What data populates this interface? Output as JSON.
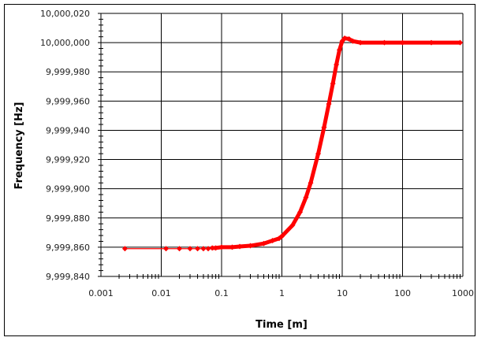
{
  "chart_data": {
    "type": "line",
    "title": "",
    "xlabel": "Time [m]",
    "ylabel": "Frequency [Hz]",
    "xscale": "log",
    "xlim": [
      0.001,
      1000
    ],
    "ylim": [
      9999840,
      10000020
    ],
    "grid": true,
    "legend": null,
    "x_ticks": [
      "0.001",
      "0.01",
      "0.1",
      "1",
      "10",
      "100",
      "1000"
    ],
    "y_ticks": [
      "9,999,840",
      "9,999,860",
      "9,999,880",
      "9,999,900",
      "9,999,920",
      "9,999,940",
      "9,999,960",
      "9,999,980",
      "10,000,000",
      "10,000,020"
    ],
    "series": [
      {
        "name": "Frequency",
        "color": "#ff0000",
        "marker": "diamond",
        "x": [
          0.0025,
          0.012,
          0.02,
          0.03,
          0.04,
          0.05,
          0.06,
          0.07,
          0.08,
          0.1,
          0.15,
          0.2,
          0.3,
          0.5,
          0.7,
          0.9,
          1.0,
          1.5,
          2.0,
          2.5,
          3.0,
          4.0,
          5.0,
          6.0,
          7.0,
          8.0,
          9.0,
          10.0,
          11.0,
          13.0,
          15.0,
          20.0,
          50.0,
          100.0,
          300.0,
          900.0
        ],
        "values": [
          9999859,
          9999859,
          9999859,
          9999859,
          9999859,
          9999859,
          9999859,
          9999859.5,
          9999859.5,
          9999860,
          9999860,
          9999860.5,
          9999861,
          9999862.5,
          9999864.5,
          9999866,
          9999867.5,
          9999875,
          9999884,
          9999894,
          9999904,
          9999924,
          9999942,
          9999958,
          9999972,
          9999985,
          9999995,
          10000001,
          10000003,
          10000002.5,
          10000001,
          10000000,
          10000000,
          10000000,
          10000000,
          10000000
        ]
      }
    ]
  }
}
